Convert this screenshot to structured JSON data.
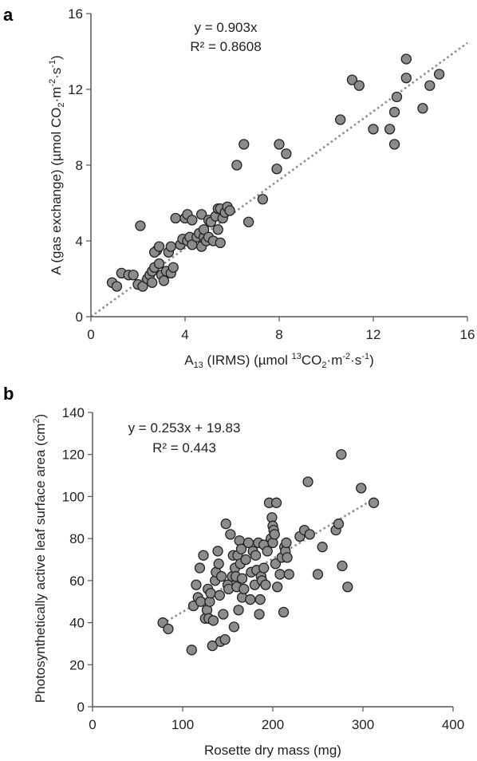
{
  "colors": {
    "point_fill": "#8c8c8c",
    "point_stroke": "#222222",
    "trend_line": "#8c8c8c",
    "axis": "#555555"
  },
  "chart_data": [
    {
      "panel": "a",
      "type": "scatter",
      "title": "",
      "xlabel_parts": {
        "prefix": "A",
        "sub": "13",
        "mid": " (IRMS) (µmol ",
        "sup1": "13",
        "mid2": "CO",
        "sub2": "2",
        "mid3": "·m",
        "sup2": "-2",
        "mid4": "·s",
        "sup3": "-1",
        "suffix": ")"
      },
      "ylabel_parts": {
        "prefix": "A (gas exchange) (µmol CO",
        "sub": "2",
        "mid": "·m",
        "sup1": "-2",
        "mid2": "·s",
        "sup2": "-1",
        "suffix": ")"
      },
      "xlim": [
        0,
        16
      ],
      "ylim": [
        0,
        16
      ],
      "xticks": [
        0,
        4,
        8,
        12,
        16
      ],
      "yticks": [
        0,
        4,
        8,
        12,
        16
      ],
      "grid": false,
      "trendline": {
        "equation": "y = 0.903x",
        "r2": "R² = 0.8608",
        "slope": 0.903,
        "intercept": 0
      },
      "series": [
        {
          "points": [
            [
              0.9,
              1.8
            ],
            [
              1.1,
              1.6
            ],
            [
              1.3,
              2.3
            ],
            [
              1.6,
              2.2
            ],
            [
              1.8,
              2.2
            ],
            [
              2.0,
              1.7
            ],
            [
              2.2,
              1.6
            ],
            [
              2.1,
              4.8
            ],
            [
              2.4,
              2.0
            ],
            [
              2.5,
              2.2
            ],
            [
              2.6,
              1.8
            ],
            [
              2.6,
              2.4
            ],
            [
              2.7,
              2.6
            ],
            [
              2.8,
              3.5
            ],
            [
              2.7,
              3.4
            ],
            [
              2.9,
              2.8
            ],
            [
              2.9,
              3.7
            ],
            [
              3.0,
              2.2
            ],
            [
              3.1,
              1.9
            ],
            [
              3.2,
              2.4
            ],
            [
              3.3,
              3.4
            ],
            [
              3.4,
              3.7
            ],
            [
              3.4,
              2.3
            ],
            [
              3.5,
              2.6
            ],
            [
              3.6,
              5.2
            ],
            [
              3.8,
              3.8
            ],
            [
              3.9,
              4.1
            ],
            [
              4.0,
              5.2
            ],
            [
              4.1,
              5.4
            ],
            [
              4.1,
              4.0
            ],
            [
              4.2,
              4.2
            ],
            [
              4.3,
              3.8
            ],
            [
              4.3,
              5.1
            ],
            [
              4.5,
              4.2
            ],
            [
              4.6,
              4.4
            ],
            [
              4.7,
              3.7
            ],
            [
              4.7,
              5.4
            ],
            [
              4.8,
              4.2
            ],
            [
              4.8,
              4.6
            ],
            [
              4.9,
              4.0
            ],
            [
              5.0,
              5.1
            ],
            [
              5.0,
              4.2
            ],
            [
              5.1,
              5.0
            ],
            [
              5.2,
              4.0
            ],
            [
              5.3,
              5.3
            ],
            [
              5.4,
              5.7
            ],
            [
              5.4,
              4.6
            ],
            [
              5.5,
              3.9
            ],
            [
              5.5,
              5.7
            ],
            [
              5.6,
              5.2
            ],
            [
              5.7,
              5.5
            ],
            [
              5.8,
              5.8
            ],
            [
              5.9,
              5.6
            ],
            [
              6.2,
              8.0
            ],
            [
              6.5,
              9.1
            ],
            [
              6.7,
              5.0
            ],
            [
              7.3,
              6.2
            ],
            [
              7.9,
              7.8
            ],
            [
              8.0,
              9.1
            ],
            [
              8.3,
              8.6
            ],
            [
              10.6,
              10.4
            ],
            [
              11.1,
              12.5
            ],
            [
              11.4,
              12.2
            ],
            [
              12.0,
              9.9
            ],
            [
              12.7,
              9.9
            ],
            [
              12.9,
              10.8
            ],
            [
              12.9,
              9.1
            ],
            [
              13.0,
              11.6
            ],
            [
              13.4,
              13.6
            ],
            [
              13.4,
              12.6
            ],
            [
              14.1,
              11.0
            ],
            [
              14.4,
              12.2
            ],
            [
              14.8,
              12.8
            ]
          ]
        }
      ]
    },
    {
      "panel": "b",
      "type": "scatter",
      "title": "",
      "xlabel": "Rosette dry mass (mg)",
      "ylabel_parts": {
        "prefix": "Photosynthetically active leaf surface area (cm",
        "sup": "2",
        "suffix": ")"
      },
      "xlim": [
        0,
        400
      ],
      "ylim": [
        0,
        140
      ],
      "xticks": [
        0,
        100,
        200,
        300,
        400
      ],
      "yticks": [
        0,
        20,
        40,
        60,
        80,
        100,
        120,
        140
      ],
      "grid": false,
      "trendline": {
        "equation": "y = 0.253x + 19.83",
        "r2": "R² = 0.443",
        "slope": 0.253,
        "intercept": 19.83
      },
      "series": [
        {
          "points": [
            [
              78,
              40
            ],
            [
              84,
              37
            ],
            [
              110,
              27
            ],
            [
              112,
              48
            ],
            [
              115,
              58
            ],
            [
              117,
              52
            ],
            [
              119,
              66
            ],
            [
              120,
              50
            ],
            [
              123,
              72
            ],
            [
              125,
              42
            ],
            [
              127,
              46
            ],
            [
              128,
              56
            ],
            [
              129,
              42
            ],
            [
              130,
              50
            ],
            [
              131,
              54
            ],
            [
              133,
              29
            ],
            [
              134,
              41
            ],
            [
              136,
              60
            ],
            [
              137,
              64
            ],
            [
              139,
              74
            ],
            [
              140,
              68
            ],
            [
              141,
              53
            ],
            [
              142,
              31
            ],
            [
              143,
              62
            ],
            [
              145,
              44
            ],
            [
              147,
              32
            ],
            [
              148,
              87
            ],
            [
              150,
              58
            ],
            [
              151,
              56
            ],
            [
              153,
              82
            ],
            [
              155,
              62
            ],
            [
              156,
              72
            ],
            [
              157,
              38
            ],
            [
              158,
              66
            ],
            [
              159,
              62
            ],
            [
              160,
              57
            ],
            [
              161,
              72
            ],
            [
              162,
              46
            ],
            [
              163,
              79
            ],
            [
              164,
              68
            ],
            [
              165,
              75
            ],
            [
              166,
              61
            ],
            [
              166,
              52
            ],
            [
              168,
              56
            ],
            [
              170,
              70
            ],
            [
              173,
              78
            ],
            [
              175,
              51
            ],
            [
              176,
              64
            ],
            [
              178,
              74
            ],
            [
              180,
              58
            ],
            [
              181,
              72
            ],
            [
              182,
              65
            ],
            [
              184,
              78
            ],
            [
              185,
              44
            ],
            [
              186,
              51
            ],
            [
              187,
              62
            ],
            [
              188,
              60
            ],
            [
              190,
              66
            ],
            [
              190,
              77
            ],
            [
              192,
              58
            ],
            [
              194,
              74
            ],
            [
              196,
              97
            ],
            [
              198,
              80
            ],
            [
              199,
              90
            ],
            [
              200,
              78
            ],
            [
              200,
              86
            ],
            [
              201,
              84
            ],
            [
              202,
              82
            ],
            [
              203,
              68
            ],
            [
              204,
              97
            ],
            [
              205,
              57
            ],
            [
              208,
              63
            ],
            [
              210,
              71
            ],
            [
              212,
              45
            ],
            [
              213,
              76
            ],
            [
              214,
              74
            ],
            [
              215,
              78
            ],
            [
              216,
              71
            ],
            [
              218,
              63
            ],
            [
              230,
              81
            ],
            [
              235,
              84
            ],
            [
              239,
              107
            ],
            [
              241,
              82
            ],
            [
              250,
              63
            ],
            [
              255,
              76
            ],
            [
              270,
              84
            ],
            [
              273,
              87
            ],
            [
              276,
              120
            ],
            [
              277,
              67
            ],
            [
              283,
              57
            ],
            [
              298,
              104
            ],
            [
              312,
              97
            ]
          ]
        }
      ]
    }
  ]
}
